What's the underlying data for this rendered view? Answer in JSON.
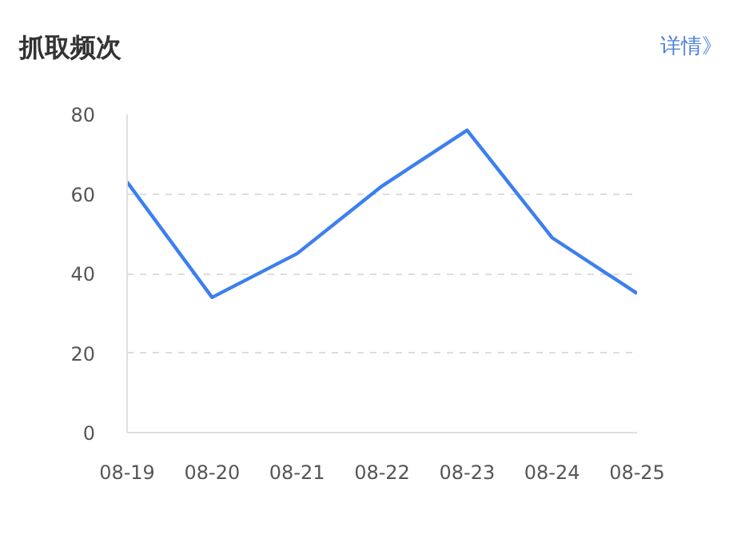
{
  "chart_data": {
    "type": "line",
    "title": "抓取频次",
    "annotations": [
      "详情》"
    ],
    "categories": [
      "08-19",
      "08-20",
      "08-21",
      "08-22",
      "08-23",
      "08-24",
      "08-25"
    ],
    "series": [
      {
        "color": "#3d7fef",
        "values": [
          63,
          34,
          45,
          62,
          76,
          49,
          35
        ]
      }
    ],
    "ylim": [
      0,
      80
    ],
    "yticks": [
      0,
      20,
      40,
      60,
      80
    ],
    "grid": "y",
    "marker": "none",
    "line_style": "solid"
  }
}
